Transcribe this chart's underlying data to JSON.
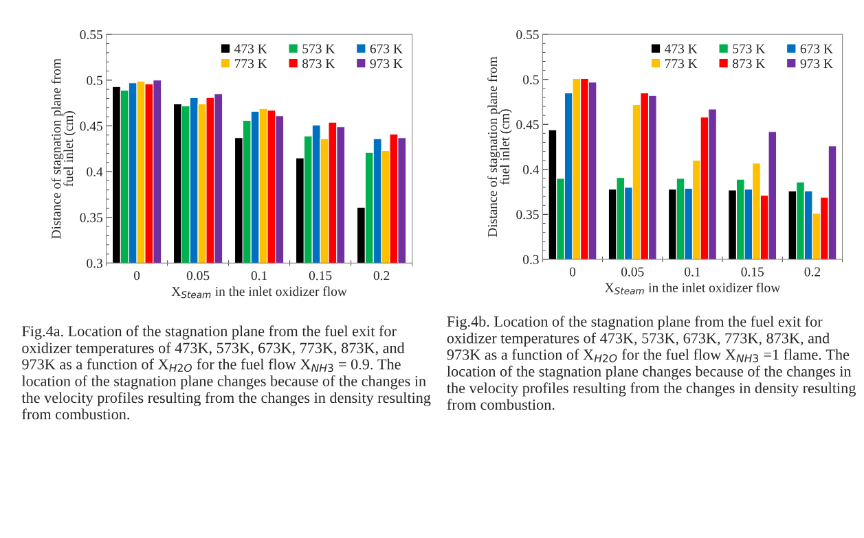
{
  "chart_data": [
    {
      "type": "bar",
      "xlabel": "X$_{Steam}$ in the inlet oxidizer flow",
      "ylabel": "Distance of stagnation plane from fuel inlet (cm)",
      "categories": [
        "0",
        "0.05",
        "0.1",
        "0.15",
        "0.2"
      ],
      "series": [
        {
          "name": "473 K",
          "color": "#000000",
          "values": [
            0.493,
            0.474,
            0.437,
            0.415,
            0.361
          ]
        },
        {
          "name": "573 K",
          "color": "#00b050",
          "values": [
            0.489,
            0.472,
            0.456,
            0.439,
            0.421
          ]
        },
        {
          "name": "673 K",
          "color": "#0070c0",
          "values": [
            0.497,
            0.481,
            0.466,
            0.451,
            0.436
          ]
        },
        {
          "name": "773 K",
          "color": "#ffc000",
          "values": [
            0.499,
            0.474,
            0.469,
            0.436,
            0.423
          ]
        },
        {
          "name": "873 K",
          "color": "#ff0000",
          "values": [
            0.496,
            0.481,
            0.467,
            0.454,
            0.441
          ]
        },
        {
          "name": "973 K",
          "color": "#7030a0",
          "values": [
            0.5,
            0.485,
            0.461,
            0.449,
            0.437
          ]
        }
      ],
      "ylim": [
        0.3,
        0.55
      ],
      "yticks": [
        0.3,
        0.35,
        0.4,
        0.45,
        0.5,
        0.55
      ],
      "legend": "top right",
      "grid": false,
      "annotations": [
        "Fig.4a. Location of the stagnation plane from the fuel exit for oxidizer temperatures of 473K, 573K, 673K, 773K, 873K, and 973K as a function of X$_{H2O}$ for the fuel flow X$_{NH3}$ = 0.9. The location of the stagnation plane changes because of the changes in the velocity profiles resulting from the changes in density resulting from combustion."
      ]
    },
    {
      "type": "bar",
      "xlabel": "X$_{Steam}$ in the inlet oxidizer flow",
      "ylabel": "Distance of stagnation plane from fuel inlet (cm)",
      "categories": [
        "0",
        "0.05",
        "0.1",
        "0.15",
        "0.2"
      ],
      "series": [
        {
          "name": "473 K",
          "color": "#000000",
          "values": [
            0.444,
            0.378,
            0.378,
            0.377,
            0.376
          ]
        },
        {
          "name": "573 K",
          "color": "#00b050",
          "values": [
            0.39,
            0.391,
            0.39,
            0.389,
            0.386
          ]
        },
        {
          "name": "673 K",
          "color": "#0070c0",
          "values": [
            0.485,
            0.38,
            0.379,
            0.378,
            0.376
          ]
        },
        {
          "name": "773 K",
          "color": "#ffc000",
          "values": [
            0.501,
            0.472,
            0.41,
            0.407,
            0.351
          ]
        },
        {
          "name": "873 K",
          "color": "#ff0000",
          "values": [
            0.501,
            0.485,
            0.458,
            0.371,
            0.369
          ]
        },
        {
          "name": "973 K",
          "color": "#7030a0",
          "values": [
            0.497,
            0.482,
            0.467,
            0.442,
            0.426
          ]
        }
      ],
      "ylim": [
        0.3,
        0.55
      ],
      "yticks": [
        0.3,
        0.35,
        0.4,
        0.45,
        0.5,
        0.55
      ],
      "legend": "top right",
      "grid": false,
      "annotations": [
        "Fig.4b. Location of the stagnation plane from the fuel exit for oxidizer temperatures of 473K, 573K, 673K, 773K, 873K, and 973K as a function of X$_{H2O}$ for the fuel flow X$_{NH3}$ =1 flame. The location of the stagnation plane changes because of the changes in the velocity profiles resulting from the changes in density resulting from combustion."
      ]
    }
  ]
}
